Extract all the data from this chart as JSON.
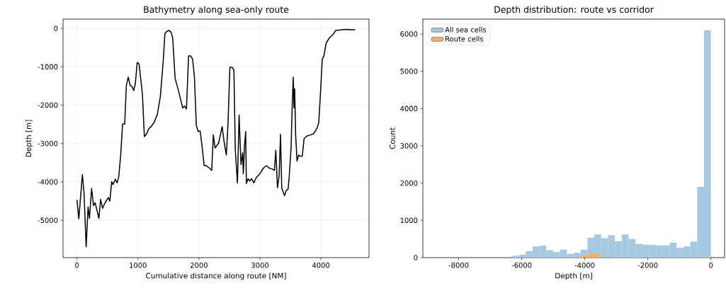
{
  "chart_data": [
    {
      "type": "line",
      "title": "Bathymetry along sea-only route",
      "xlabel": "Cumulative distance along route [NM]",
      "ylabel": "Depth [m]",
      "x": [
        0,
        31,
        89,
        116,
        151,
        182,
        205,
        240,
        271,
        298,
        360,
        388,
        419,
        465,
        516,
        539,
        570,
        593,
        628,
        659,
        686,
        717,
        748,
        783,
        810,
        841,
        872,
        903,
        930,
        957,
        988,
        1019,
        1074,
        1105,
        1136,
        1182,
        1221,
        1267,
        1318,
        1368,
        1415,
        1442,
        1473,
        1508,
        1543,
        1570,
        1609,
        1667,
        1733,
        1764,
        1795,
        1830,
        1861,
        1895,
        1926,
        1957,
        1988,
        2019,
        2050,
        2085,
        2120,
        2171,
        2209,
        2236,
        2264,
        2322,
        2380,
        2410,
        2449,
        2476,
        2507,
        2542,
        2573,
        2596,
        2631,
        2658,
        2689,
        2716,
        2727,
        2747,
        2766,
        2777,
        2804,
        2835,
        2862,
        2901,
        2940,
        2998,
        3056,
        3106,
        3152,
        3210,
        3237,
        3260,
        3287,
        3314,
        3337,
        3357,
        3403,
        3430,
        3461,
        3480,
        3511,
        3527,
        3546,
        3558,
        3569,
        3585,
        3608,
        3635,
        3662,
        3693,
        3724,
        3770,
        3828,
        3878,
        3932,
        3963,
        3994,
        4021,
        4048,
        4087,
        4137,
        4203,
        4242,
        4350,
        4427,
        4466,
        4562
      ],
      "series": [
        {
          "color": "#000000",
          "values": [
            -4470,
            -4960,
            -3810,
            -4285,
            -5690,
            -4650,
            -4950,
            -4170,
            -4620,
            -4540,
            -4950,
            -4455,
            -4685,
            -4530,
            -4410,
            -4500,
            -3990,
            -4070,
            -3930,
            -4025,
            -3855,
            -3300,
            -2490,
            -2490,
            -1485,
            -1270,
            -1485,
            -1515,
            -1620,
            -1440,
            -885,
            -930,
            -1730,
            -2820,
            -2760,
            -2605,
            -2550,
            -2440,
            -2240,
            -1760,
            -835,
            -130,
            -80,
            -50,
            -100,
            -250,
            -1300,
            -1640,
            -2070,
            -2025,
            -2100,
            -715,
            -715,
            -795,
            -1270,
            -2530,
            -2685,
            -2670,
            -3055,
            -3575,
            -3575,
            -3640,
            -3700,
            -2775,
            -3115,
            -2990,
            -2560,
            -2930,
            -3300,
            -2500,
            -1010,
            -1010,
            -1085,
            -3175,
            -4025,
            -2255,
            -3545,
            -3240,
            -3790,
            -3055,
            -2685,
            -4040,
            -3915,
            -3975,
            -3915,
            -4025,
            -3885,
            -3790,
            -3640,
            -3575,
            -3640,
            -3670,
            -3700,
            -3175,
            -4150,
            -3855,
            -2760,
            -4160,
            -4360,
            -4220,
            -4190,
            -3855,
            -3085,
            -2100,
            -1270,
            -2070,
            -1575,
            -2775,
            -3455,
            -3300,
            -3330,
            -3330,
            -2870,
            -2805,
            -2775,
            -2745,
            -2610,
            -2470,
            -1640,
            -805,
            -715,
            -375,
            -250,
            -150,
            -50,
            -35,
            -25,
            -35,
            -35
          ]
        }
      ],
      "xlim": [
        -228,
        4788
      ],
      "ylim": [
        -5973,
        243
      ],
      "xticks": [
        0,
        1000,
        2000,
        3000,
        4000
      ],
      "yticks": [
        -5000,
        -4000,
        -3000,
        -2000,
        -1000,
        0
      ],
      "grid": true,
      "line_style": "solid",
      "marker": "none"
    },
    {
      "type": "histogram",
      "title": "Depth distribution: route vs corridor",
      "xlabel": "Depth [m]",
      "ylabel": "Count",
      "bins": [
        -8700,
        -8482.5,
        -8265,
        -8047.5,
        -7830,
        -7612.5,
        -7395,
        -7177.5,
        -6960,
        -6742.5,
        -6525,
        -6307.5,
        -6090,
        -5872.5,
        -5655,
        -5437.5,
        -5220,
        -5002.5,
        -4785,
        -4567.5,
        -4350,
        -4132.5,
        -3915,
        -3697.5,
        -3480,
        -3262.5,
        -3045,
        -2827.5,
        -2610,
        -2392.5,
        -2175,
        -1957.5,
        -1740,
        -1522.5,
        -1305,
        -1087.5,
        -870,
        -652.5,
        -435,
        -217.5,
        0
      ],
      "series": [
        {
          "name": "All sea cells",
          "color": "#a6c8e1",
          "values": [
            0,
            0,
            0,
            0,
            0,
            0,
            0,
            0,
            0,
            0,
            0,
            50,
            80,
            170,
            300,
            320,
            200,
            150,
            215,
            100,
            130,
            210,
            535,
            620,
            520,
            600,
            440,
            620,
            500,
            370,
            350,
            340,
            330,
            330,
            400,
            260,
            300,
            430,
            1900,
            6100
          ]
        },
        {
          "name": "Route cells",
          "color": "#f8ad6c",
          "values": [
            0,
            0,
            0,
            0,
            0,
            0,
            0,
            0,
            0,
            0,
            0,
            0,
            0,
            0,
            0,
            0,
            0,
            0,
            0,
            0,
            0,
            50,
            100,
            100,
            20,
            20,
            0,
            0,
            0,
            0,
            0,
            0,
            0,
            0,
            0,
            0,
            0,
            0,
            0,
            0
          ]
        }
      ],
      "xlim": [
        -9135,
        435
      ],
      "ylim": [
        0,
        6400
      ],
      "xticks": [
        -8000,
        -6000,
        -4000,
        -2000,
        0
      ],
      "yticks": [
        0,
        1000,
        2000,
        3000,
        4000,
        5000,
        6000
      ],
      "grid": false,
      "legend": "top left"
    }
  ]
}
